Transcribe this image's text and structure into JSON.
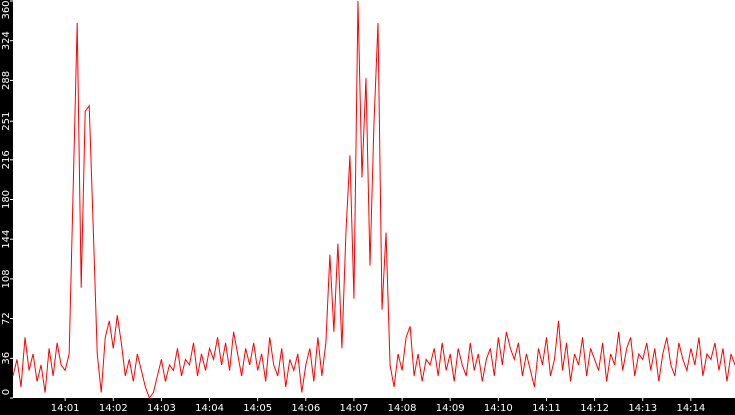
{
  "chart_data": {
    "type": "line",
    "color": "#ff0000",
    "values": [
      20,
      35,
      10,
      55,
      25,
      40,
      15,
      30,
      5,
      45,
      20,
      50,
      30,
      25,
      40,
      190,
      340,
      100,
      260,
      265,
      155,
      40,
      5,
      55,
      70,
      45,
      75,
      50,
      20,
      35,
      15,
      40,
      25,
      10,
      0,
      5,
      20,
      35,
      15,
      30,
      25,
      45,
      20,
      35,
      30,
      50,
      20,
      40,
      25,
      45,
      35,
      55,
      30,
      50,
      25,
      60,
      40,
      20,
      45,
      30,
      50,
      25,
      40,
      15,
      55,
      30,
      20,
      45,
      10,
      35,
      25,
      40,
      5,
      30,
      45,
      15,
      55,
      20,
      50,
      130,
      60,
      140,
      45,
      150,
      220,
      90,
      360,
      200,
      290,
      120,
      250,
      340,
      80,
      150,
      30,
      10,
      40,
      25,
      55,
      65,
      20,
      40,
      15,
      35,
      30,
      45,
      20,
      50,
      25,
      40,
      15,
      45,
      30,
      20,
      50,
      25,
      40,
      15,
      35,
      45,
      20,
      55,
      30,
      60,
      45,
      35,
      50,
      20,
      40,
      25,
      10,
      45,
      30,
      55,
      20,
      35,
      70,
      25,
      50,
      15,
      40,
      30,
      55,
      20,
      45,
      35,
      25,
      50,
      15,
      40,
      30,
      60,
      25,
      45,
      55,
      20,
      40,
      35,
      50,
      25,
      45,
      15,
      40,
      55,
      30,
      20,
      50,
      35,
      25,
      45,
      30,
      55,
      20,
      40,
      35,
      50,
      25,
      45,
      15,
      40,
      30
    ],
    "xlim": [
      0,
      180
    ],
    "xticks": [
      {
        "value": 13,
        "label": "14:01"
      },
      {
        "value": 25,
        "label": "14:02"
      },
      {
        "value": 37,
        "label": "14:03"
      },
      {
        "value": 49,
        "label": "14:04"
      },
      {
        "value": 61,
        "label": "14:05"
      },
      {
        "value": 73,
        "label": "14:06"
      },
      {
        "value": 85,
        "label": "14:07"
      },
      {
        "value": 97,
        "label": "14:08"
      },
      {
        "value": 109,
        "label": "14:09"
      },
      {
        "value": 121,
        "label": "14:10"
      },
      {
        "value": 133,
        "label": "14:11"
      },
      {
        "value": 145,
        "label": "14:12"
      },
      {
        "value": 157,
        "label": "14:13"
      },
      {
        "value": 169,
        "label": "14:14"
      }
    ],
    "ylim": [
      0,
      360
    ],
    "yticks": [
      0,
      36,
      72,
      108,
      144,
      180,
      216,
      251,
      288,
      324,
      360
    ]
  }
}
